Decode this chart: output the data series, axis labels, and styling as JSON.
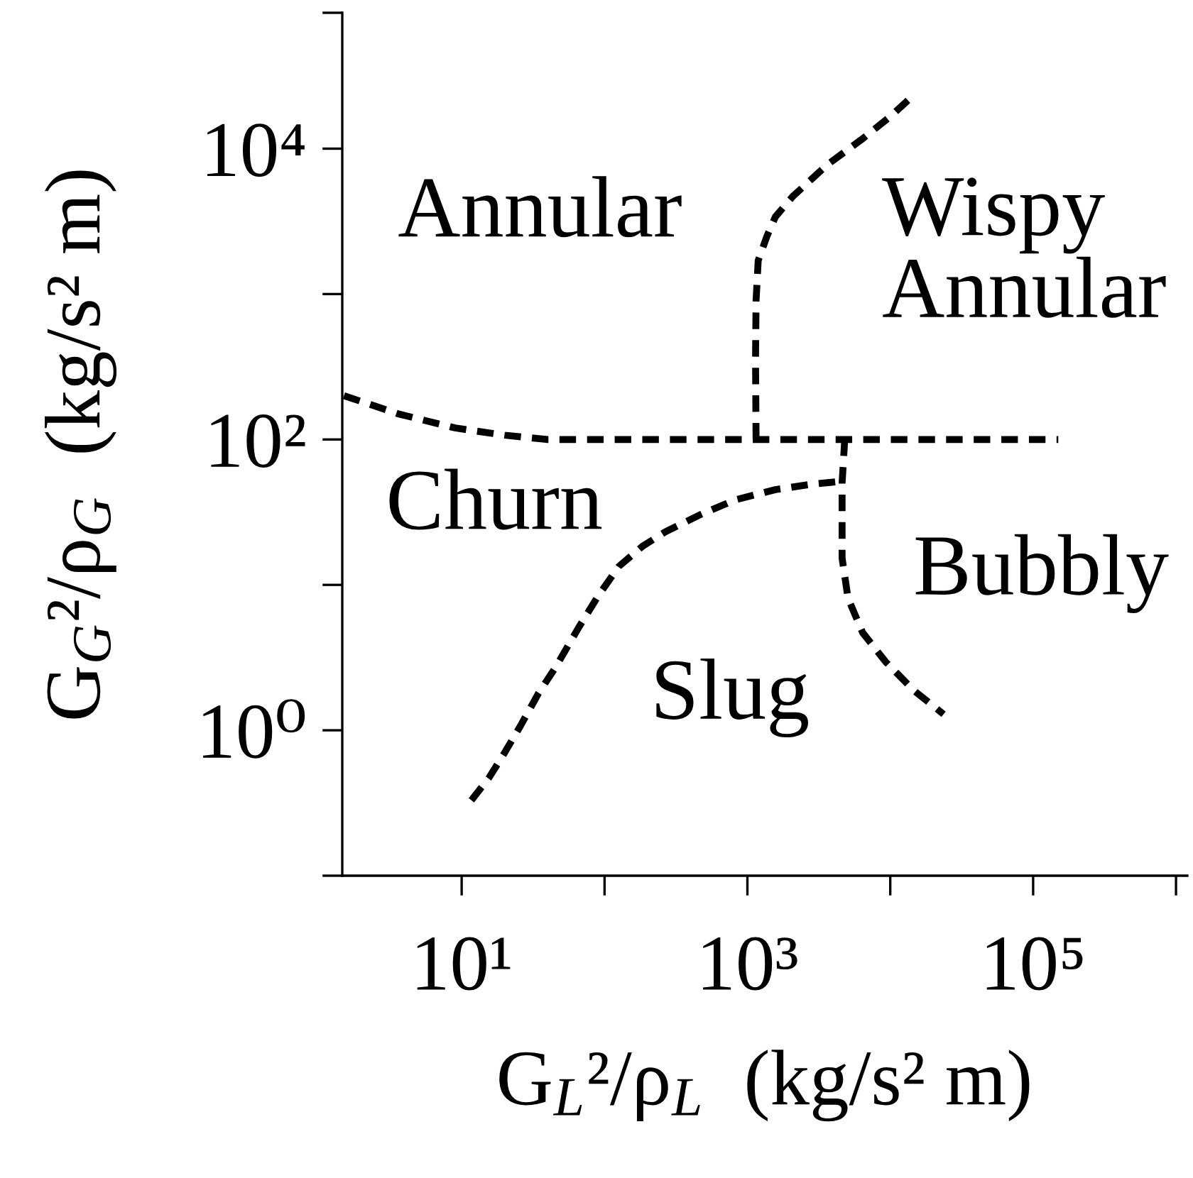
{
  "chart_data": {
    "type": "line",
    "xlabel": "G$_{L}$²/ρ$_{L}$  (kg/s² m)",
    "ylabel": "G$_{G}$²/ρ$_{G}$  (kg/s² m)",
    "log": "xy",
    "xlim": [
      1.46,
      1200000
    ],
    "ylim": [
      0.1,
      86000
    ],
    "xticks": [
      {
        "value": 10,
        "label": "10¹"
      },
      {
        "value": 100,
        "label": null
      },
      {
        "value": 1000,
        "label": "10³"
      },
      {
        "value": 10000,
        "label": null
      },
      {
        "value": 100000,
        "label": "10⁵"
      },
      {
        "value": 1000000,
        "label": null
      }
    ],
    "yticks": [
      {
        "value": 0.1,
        "label": null
      },
      {
        "value": 1,
        "label": "10⁰"
      },
      {
        "value": 10,
        "label": null
      },
      {
        "value": 100,
        "label": "10²"
      },
      {
        "value": 1000,
        "label": null
      },
      {
        "value": 10000,
        "label": "10⁴"
      },
      {
        "value": 86000,
        "label": null
      }
    ],
    "grid": false,
    "line_style": "dashed",
    "marker": "none",
    "series": [
      {
        "color": "#000000",
        "x": [
          1.5,
          3.6,
          9,
          20,
          40,
          150000
        ],
        "values": [
          200,
          150,
          120,
          107,
          100,
          100
        ]
      },
      {
        "color": "#000000",
        "x": [
          1150,
          1140,
          1150,
          1190,
          1370,
          1570,
          2080,
          3650,
          6400,
          10200,
          14100
        ],
        "values": [
          100,
          360,
          900,
          1700,
          2500,
          3400,
          4700,
          7800,
          11700,
          16900,
          22700
        ]
      },
      {
        "color": "#000000",
        "x": [
          11.7,
          15.5,
          19.6,
          25.9,
          34.3,
          45.3,
          66,
          91,
          126,
          184,
          267,
          468,
          820,
          1570,
          2760,
          4400
        ],
        "values": [
          0.33,
          0.47,
          0.68,
          1.08,
          1.78,
          2.7,
          5.1,
          8.5,
          13.4,
          18.4,
          23.2,
          30.4,
          38.4,
          45.2,
          49.1,
          51.4
        ]
      },
      {
        "color": "#000000",
        "x": [
          4800,
          4600,
          4600,
          4600,
          5060,
          6400,
          9300,
          14800,
          23600
        ],
        "values": [
          100,
          50,
          29,
          15.3,
          8.1,
          4.7,
          2.95,
          1.86,
          1.29
        ]
      }
    ],
    "annotations": [
      "Annular",
      "Wispy\nAnnular",
      "Churn",
      "Bubbly",
      "Slug"
    ]
  }
}
